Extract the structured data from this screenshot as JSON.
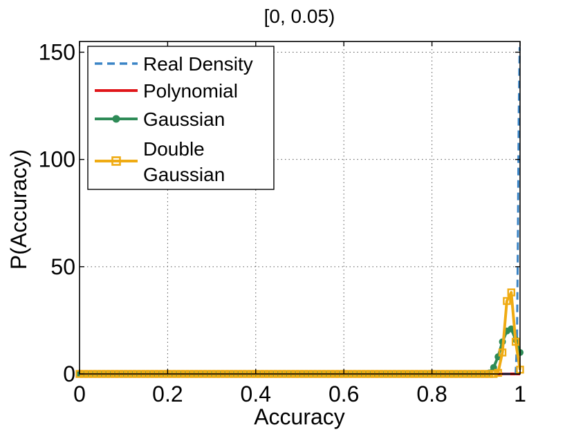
{
  "chart_data": {
    "type": "line",
    "title": "[0, 0.05)",
    "xlabel": "Accuracy",
    "ylabel": "P(Accuracy)",
    "xlim": [
      0,
      1
    ],
    "ylim": [
      0,
      155
    ],
    "xticks": [
      0,
      0.2,
      0.4,
      0.6,
      0.8,
      1
    ],
    "xtick_labels": [
      "0",
      "0.2",
      "0.4",
      "0.6",
      "0.8",
      "1"
    ],
    "yticks": [
      0,
      50,
      100,
      150
    ],
    "ytick_labels": [
      "0",
      "50",
      "100",
      "150"
    ],
    "grid": true,
    "legend_position": "top-left",
    "series": [
      {
        "name": "Real Density",
        "color": "#3a84c5",
        "style": "dashed",
        "marker": "none",
        "x": [
          0,
          0.985,
          0.988,
          0.99,
          0.993,
          0.995,
          0.997,
          0.999,
          1.0
        ],
        "y": [
          0,
          0,
          0,
          0,
          15,
          60,
          120,
          152,
          152
        ]
      },
      {
        "name": "Polynomial",
        "color": "#e0161a",
        "style": "solid",
        "marker": "none",
        "x": [
          0,
          0.5,
          1.0
        ],
        "y": [
          0,
          0,
          0
        ]
      },
      {
        "name": "Gaussian",
        "color": "#2e8b57",
        "style": "solid",
        "marker": "circle",
        "x": [
          0,
          0.01,
          0.02,
          0.03,
          0.04,
          0.05,
          0.06,
          0.07,
          0.08,
          0.09,
          0.1,
          0.11,
          0.12,
          0.13,
          0.14,
          0.15,
          0.16,
          0.17,
          0.18,
          0.19,
          0.2,
          0.21,
          0.22,
          0.23,
          0.24,
          0.25,
          0.26,
          0.27,
          0.28,
          0.29,
          0.3,
          0.31,
          0.32,
          0.33,
          0.34,
          0.35,
          0.36,
          0.37,
          0.38,
          0.39,
          0.4,
          0.41,
          0.42,
          0.43,
          0.44,
          0.45,
          0.46,
          0.47,
          0.48,
          0.49,
          0.5,
          0.51,
          0.52,
          0.53,
          0.54,
          0.55,
          0.56,
          0.57,
          0.58,
          0.59,
          0.6,
          0.61,
          0.62,
          0.63,
          0.64,
          0.65,
          0.66,
          0.67,
          0.68,
          0.69,
          0.7,
          0.71,
          0.72,
          0.73,
          0.74,
          0.75,
          0.76,
          0.77,
          0.78,
          0.79,
          0.8,
          0.81,
          0.82,
          0.83,
          0.84,
          0.85,
          0.86,
          0.87,
          0.88,
          0.89,
          0.9,
          0.91,
          0.92,
          0.93,
          0.94,
          0.95,
          0.96,
          0.97,
          0.98,
          0.99,
          1.0
        ],
        "y": [
          0,
          0,
          0,
          0,
          0,
          0,
          0,
          0,
          0,
          0,
          0,
          0,
          0,
          0,
          0,
          0,
          0,
          0,
          0,
          0,
          0,
          0,
          0,
          0,
          0,
          0,
          0,
          0,
          0,
          0,
          0,
          0,
          0,
          0,
          0,
          0,
          0,
          0,
          0,
          0,
          0,
          0,
          0,
          0,
          0,
          0,
          0,
          0,
          0,
          0,
          0,
          0,
          0,
          0,
          0,
          0,
          0,
          0,
          0,
          0,
          0,
          0,
          0,
          0,
          0,
          0,
          0,
          0,
          0,
          0,
          0,
          0,
          0,
          0,
          0,
          0,
          0,
          0,
          0,
          0,
          0,
          0,
          0,
          0,
          0,
          0,
          0,
          0,
          0,
          0,
          0,
          0,
          0,
          0.5,
          3,
          8,
          15,
          20,
          21,
          16,
          10
        ]
      },
      {
        "name": "Double Gaussian",
        "color": "#efab13",
        "style": "solid",
        "marker": "square",
        "x": [
          0,
          0.01,
          0.02,
          0.03,
          0.04,
          0.05,
          0.06,
          0.07,
          0.08,
          0.09,
          0.1,
          0.11,
          0.12,
          0.13,
          0.14,
          0.15,
          0.16,
          0.17,
          0.18,
          0.19,
          0.2,
          0.21,
          0.22,
          0.23,
          0.24,
          0.25,
          0.26,
          0.27,
          0.28,
          0.29,
          0.3,
          0.31,
          0.32,
          0.33,
          0.34,
          0.35,
          0.36,
          0.37,
          0.38,
          0.39,
          0.4,
          0.41,
          0.42,
          0.43,
          0.44,
          0.45,
          0.46,
          0.47,
          0.48,
          0.49,
          0.5,
          0.51,
          0.52,
          0.53,
          0.54,
          0.55,
          0.56,
          0.57,
          0.58,
          0.59,
          0.6,
          0.61,
          0.62,
          0.63,
          0.64,
          0.65,
          0.66,
          0.67,
          0.68,
          0.69,
          0.7,
          0.71,
          0.72,
          0.73,
          0.74,
          0.75,
          0.76,
          0.77,
          0.78,
          0.79,
          0.8,
          0.81,
          0.82,
          0.83,
          0.84,
          0.85,
          0.86,
          0.87,
          0.88,
          0.89,
          0.9,
          0.91,
          0.92,
          0.93,
          0.94,
          0.95,
          0.96,
          0.97,
          0.98,
          0.99,
          1.0
        ],
        "y": [
          0,
          0,
          0,
          0,
          0,
          0,
          0,
          0,
          0,
          0,
          0,
          0,
          0,
          0,
          0,
          0,
          0,
          0,
          0,
          0,
          0,
          0,
          0,
          0,
          0,
          0,
          0,
          0,
          0,
          0,
          0,
          0,
          0,
          0,
          0,
          0,
          0,
          0,
          0,
          0,
          0,
          0,
          0,
          0,
          0,
          0,
          0,
          0,
          0,
          0,
          0,
          0,
          0,
          0,
          0,
          0,
          0,
          0,
          0,
          0,
          0,
          0,
          0,
          0,
          0,
          0,
          0,
          0,
          0,
          0,
          0,
          0,
          0,
          0,
          0,
          0,
          0,
          0,
          0,
          0,
          0,
          0,
          0,
          0,
          0,
          0,
          0,
          0,
          0,
          0,
          0,
          0,
          0,
          0,
          0,
          0.5,
          10,
          34,
          38,
          15,
          2
        ]
      }
    ]
  }
}
